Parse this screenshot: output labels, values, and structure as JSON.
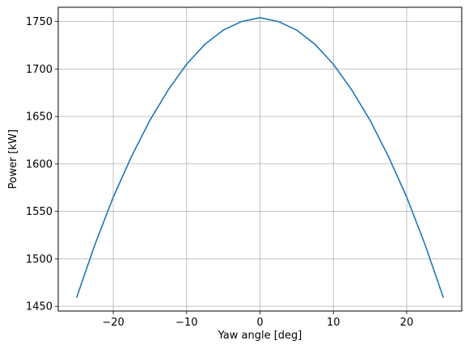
{
  "chart_data": {
    "type": "line",
    "title": "",
    "xlabel": "Yaw angle [deg]",
    "ylabel": "Power [kW]",
    "xlim": [
      -27.5,
      27.5
    ],
    "ylim": [
      1445,
      1765
    ],
    "xticks": [
      -20,
      -10,
      0,
      10,
      20
    ],
    "yticks": [
      1450,
      1500,
      1550,
      1600,
      1650,
      1700,
      1750
    ],
    "grid": true,
    "legend": "none",
    "series": [
      {
        "color": "#1f77b4",
        "x": [
          -25,
          -22.5,
          -20,
          -17.5,
          -15,
          -12.5,
          -10,
          -7.5,
          -5,
          -2.5,
          0,
          2.5,
          5,
          7.5,
          10,
          12.5,
          15,
          17.5,
          20,
          22.5,
          25
        ],
        "y": [
          1459,
          1515,
          1565,
          1608,
          1646,
          1678,
          1705,
          1726,
          1741,
          1750,
          1754,
          1750,
          1741,
          1726,
          1705,
          1678,
          1646,
          1608,
          1565,
          1515,
          1459
        ]
      }
    ]
  }
}
